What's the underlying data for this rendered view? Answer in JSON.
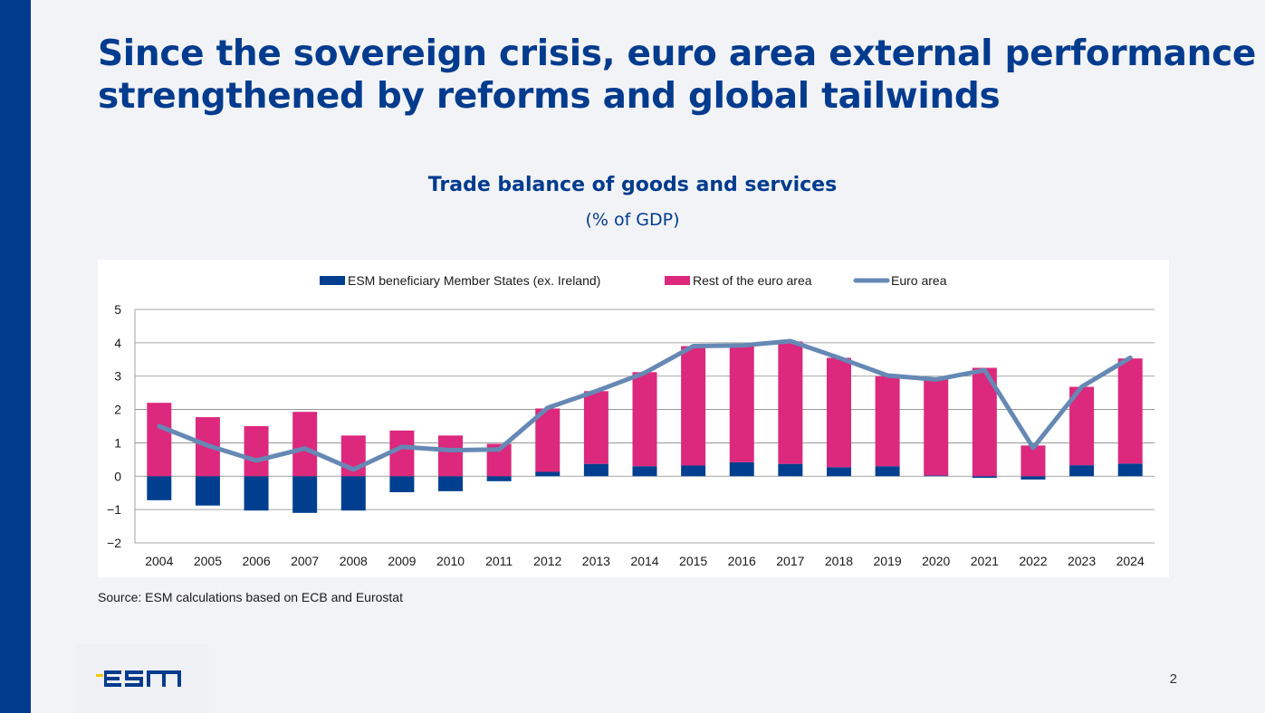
{
  "slide": {
    "title_line1": "Since the sovereign crisis, euro area external performance",
    "title_line2": "strengthened by reforms and global tailwinds",
    "source": "Source: ESM calculations based on ECB and Eurostat",
    "page_number": "2",
    "logo_text": "esm"
  },
  "colors": {
    "title": "#003b8e",
    "esm_states": "#003f8f",
    "rest_euro_area": "#dc287d",
    "euro_area": "#6688b4",
    "logo_blue": "#003b8e",
    "logo_yellow": "#f7c600"
  },
  "chart_data": {
    "type": "bar",
    "stacked": true,
    "title": "Trade balance of goods and services",
    "subtitle": "(% of GDP)",
    "categories": [
      "2004",
      "2005",
      "2006",
      "2007",
      "2008",
      "2009",
      "2010",
      "2011",
      "2012",
      "2013",
      "2014",
      "2015",
      "2016",
      "2017",
      "2018",
      "2019",
      "2020",
      "2021",
      "2022",
      "2023",
      "2024"
    ],
    "ylim": [
      -2,
      5
    ],
    "yticks": [
      {
        "value": 5,
        "label": "5"
      },
      {
        "value": 4,
        "label": "4"
      },
      {
        "value": 3,
        "label": "3"
      },
      {
        "value": 2,
        "label": "2"
      },
      {
        "value": 1,
        "label": "1"
      },
      {
        "value": 0,
        "label": "0"
      },
      {
        "value": -1,
        "label": "−1"
      },
      {
        "value": -2,
        "label": "−2"
      }
    ],
    "grid": true,
    "legend_position": "top",
    "series": [
      {
        "name": "ESM beneficiary Member States (ex. Ireland)",
        "type": "bar",
        "color_key": "esm_states",
        "values": [
          -0.72,
          -0.88,
          -1.03,
          -1.1,
          -1.03,
          -0.48,
          -0.45,
          -0.15,
          0.13,
          0.37,
          0.3,
          0.32,
          0.42,
          0.37,
          0.27,
          0.3,
          0.02,
          -0.05,
          -0.1,
          0.33,
          0.38
        ]
      },
      {
        "name": "Rest of the euro area",
        "type": "bar",
        "color_key": "rest_euro_area",
        "values": [
          2.2,
          1.77,
          1.5,
          1.93,
          1.22,
          1.37,
          1.22,
          0.97,
          1.9,
          2.18,
          2.82,
          3.58,
          3.52,
          3.67,
          3.28,
          2.7,
          2.88,
          3.25,
          0.92,
          2.35,
          3.15
        ]
      },
      {
        "name": "Euro area",
        "type": "line",
        "color_key": "euro_area",
        "values": [
          1.5,
          0.92,
          0.47,
          0.83,
          0.2,
          0.88,
          0.78,
          0.8,
          2.05,
          2.55,
          3.1,
          3.9,
          3.92,
          4.05,
          3.55,
          3.02,
          2.9,
          3.18,
          0.85,
          2.68,
          3.55
        ]
      }
    ]
  }
}
